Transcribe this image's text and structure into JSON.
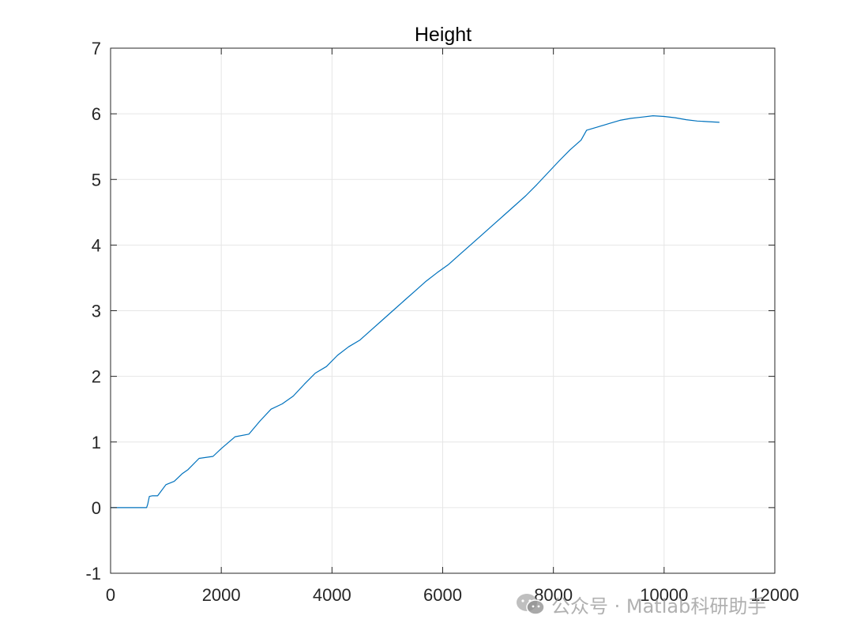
{
  "chart_data": {
    "type": "line",
    "title": "Height",
    "xlabel": "",
    "ylabel": "",
    "xlim": [
      0,
      12000
    ],
    "ylim": [
      -1,
      7
    ],
    "x_ticks": [
      0,
      2000,
      4000,
      6000,
      8000,
      10000,
      12000
    ],
    "y_ticks": [
      -1,
      0,
      1,
      2,
      3,
      4,
      5,
      6,
      7
    ],
    "grid": true,
    "series": [
      {
        "color": "#0072BD",
        "x": [
          0,
          650,
          670,
          700,
          750,
          850,
          1000,
          1150,
          1300,
          1400,
          1600,
          1850,
          2000,
          2250,
          2500,
          2700,
          2900,
          3100,
          3300,
          3500,
          3700,
          3900,
          4100,
          4300,
          4500,
          4700,
          4900,
          5100,
          5300,
          5500,
          5700,
          5900,
          6100,
          6300,
          6500,
          6700,
          6900,
          7100,
          7300,
          7500,
          7700,
          7900,
          8100,
          8300,
          8500,
          8600,
          8800,
          9000,
          9200,
          9400,
          9600,
          9800,
          10000,
          10200,
          10400,
          10600,
          10800,
          11000
        ],
        "y": [
          0,
          0,
          0.05,
          0.17,
          0.18,
          0.18,
          0.35,
          0.4,
          0.52,
          0.58,
          0.75,
          0.78,
          0.9,
          1.08,
          1.12,
          1.32,
          1.5,
          1.58,
          1.7,
          1.88,
          2.05,
          2.15,
          2.32,
          2.45,
          2.55,
          2.7,
          2.85,
          3.0,
          3.15,
          3.3,
          3.45,
          3.58,
          3.7,
          3.85,
          4.0,
          4.15,
          4.3,
          4.45,
          4.6,
          4.75,
          4.92,
          5.1,
          5.28,
          5.45,
          5.6,
          5.75,
          5.8,
          5.85,
          5.9,
          5.93,
          5.95,
          5.97,
          5.96,
          5.94,
          5.91,
          5.89,
          5.88,
          5.87
        ]
      }
    ]
  },
  "watermark": {
    "text": "公众号 · Matlab科研助手",
    "icon": "wechat-icon"
  }
}
